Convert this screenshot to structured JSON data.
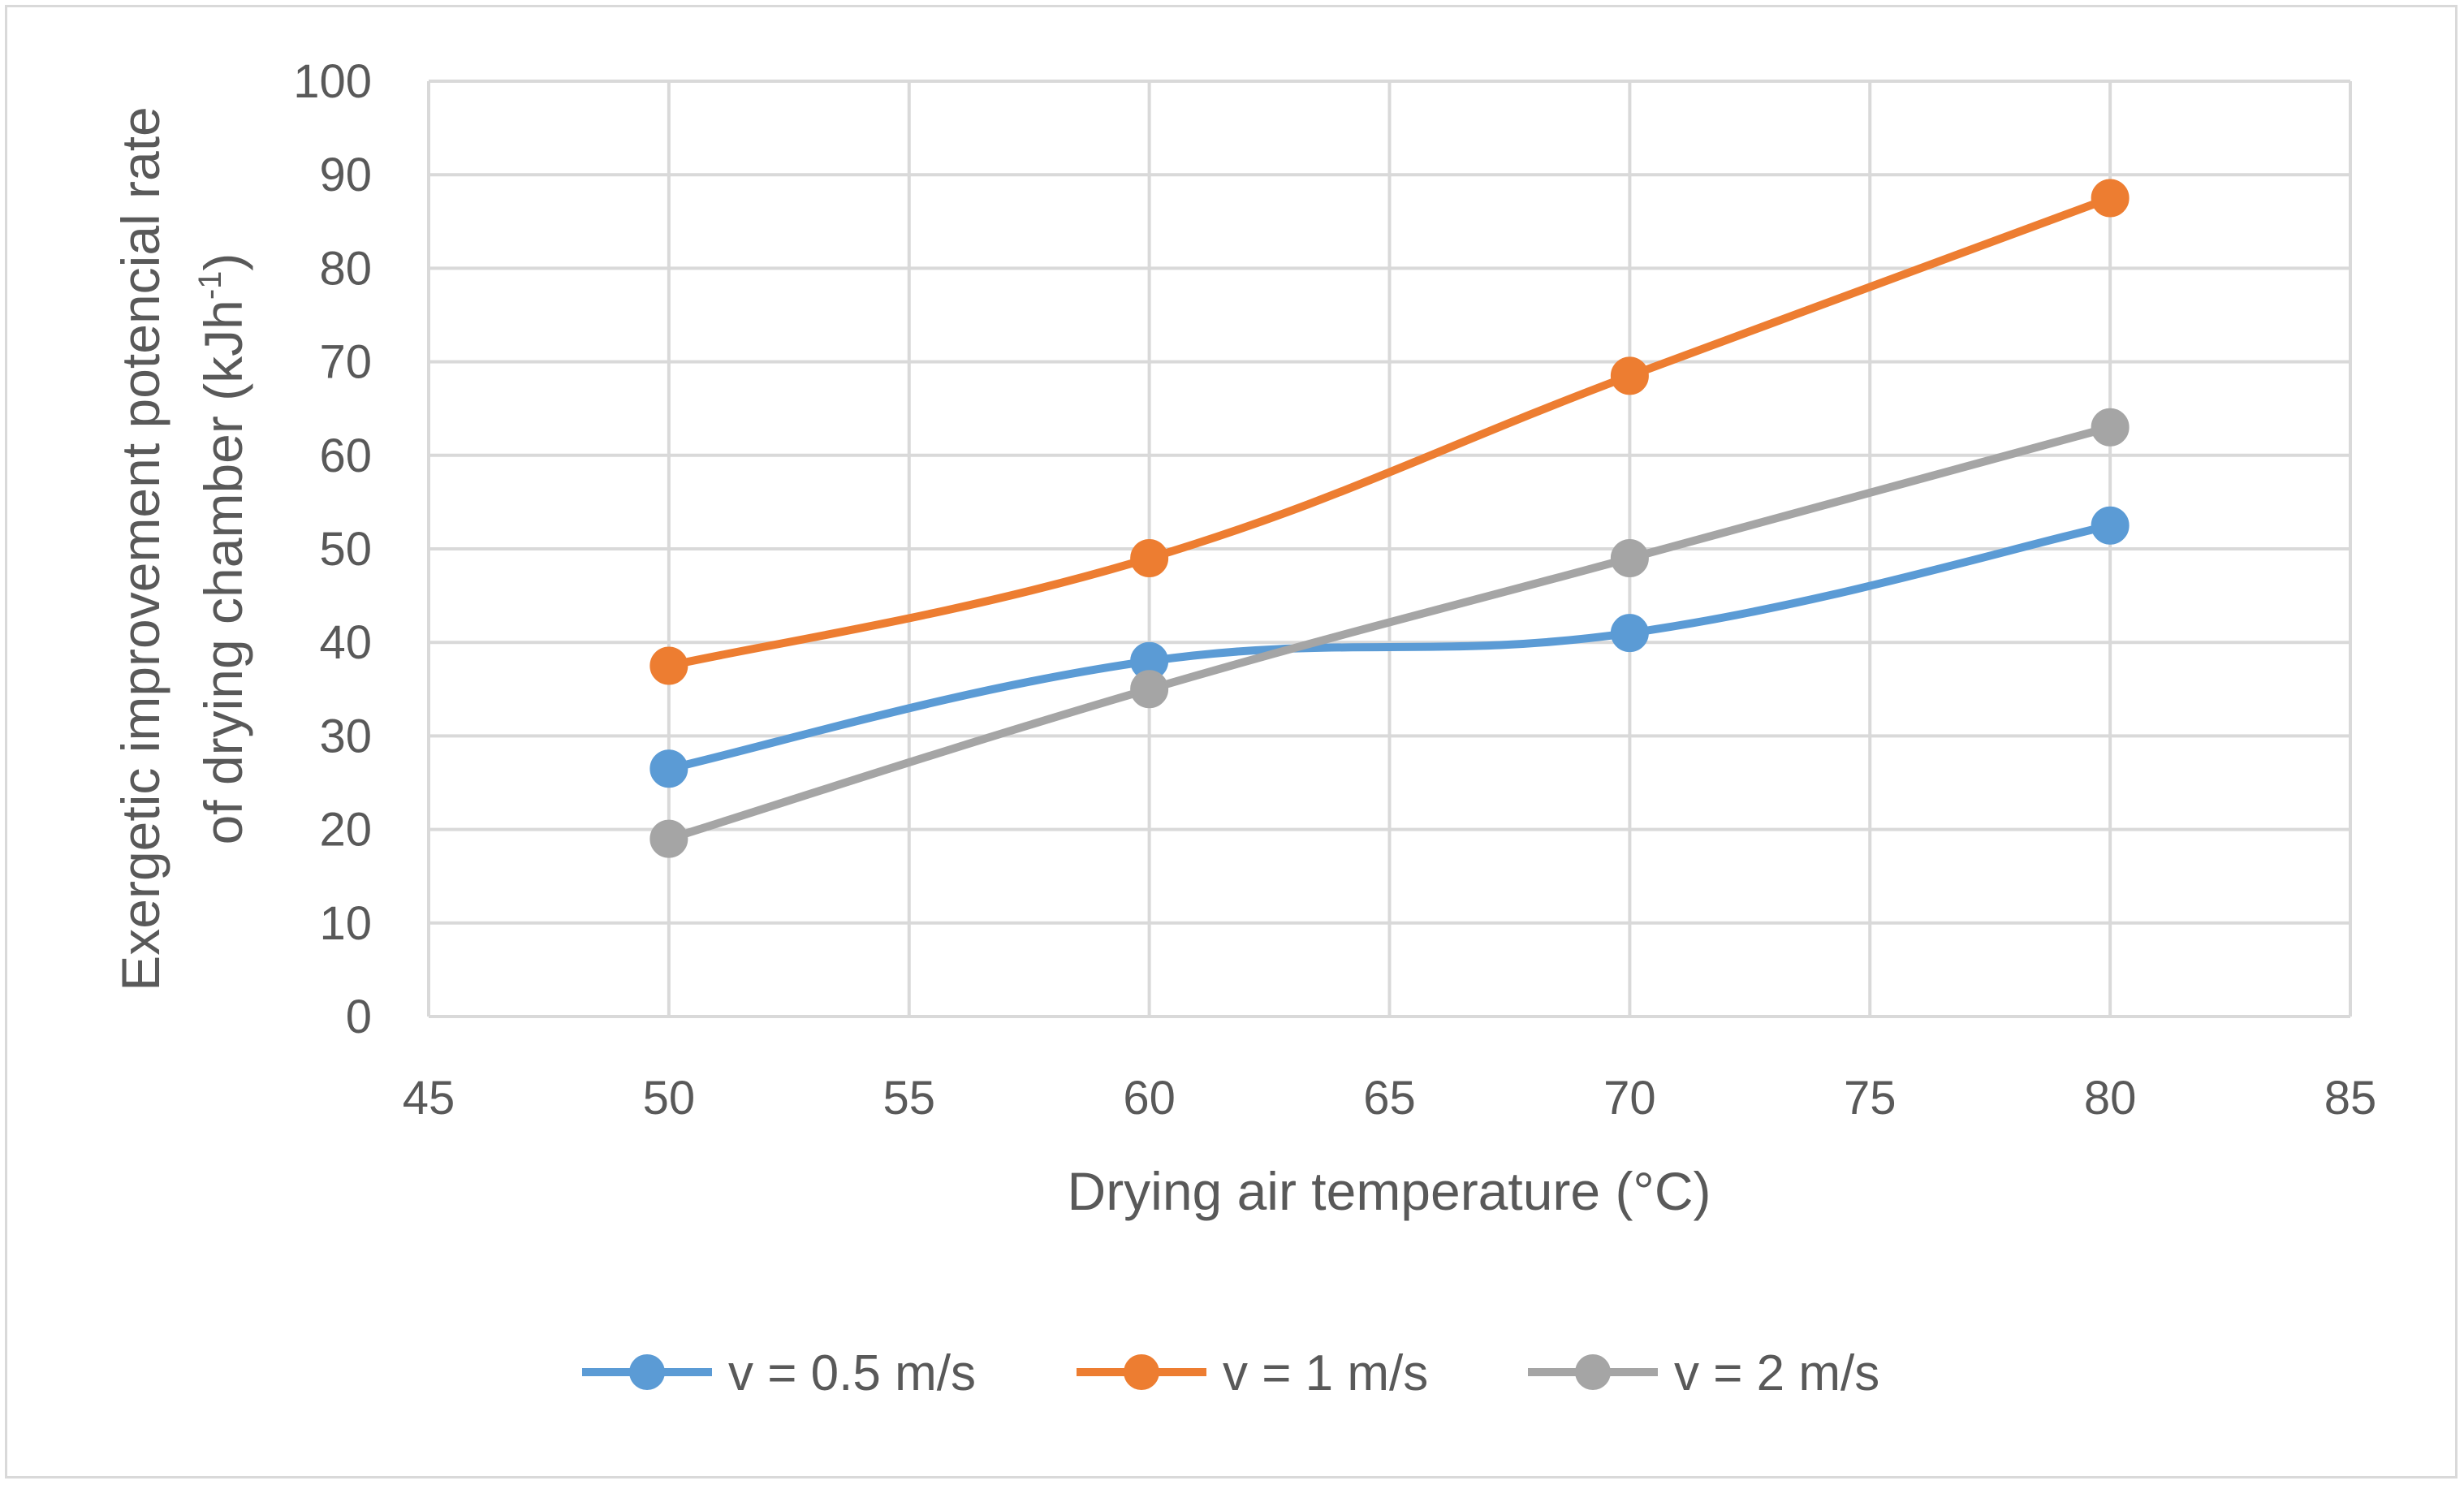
{
  "chart_data": {
    "type": "line",
    "title": "",
    "xlabel": "Drying air temperature (°C)",
    "ylabel_line1": "Exergetic improvement potencial rate",
    "ylabel_line2_main": "of drying chamber (kJh",
    "ylabel_line2_sup": "-1",
    "ylabel_line2_end": ")",
    "xlim": [
      45,
      85
    ],
    "ylim": [
      0,
      100
    ],
    "xticks": [
      45,
      50,
      55,
      60,
      65,
      70,
      75,
      80,
      85
    ],
    "yticks": [
      0,
      10,
      20,
      30,
      40,
      50,
      60,
      70,
      80,
      90,
      100
    ],
    "grid": true,
    "legend_position": "bottom",
    "x": [
      50,
      60,
      70,
      80
    ],
    "series": [
      {
        "name": "v = 0.5 m/s",
        "color": "#5b9bd5",
        "values": [
          26.5,
          38,
          41,
          52.5
        ]
      },
      {
        "name": "v = 1 m/s",
        "color": "#ed7d31",
        "values": [
          37.5,
          49,
          68.5,
          87.5
        ]
      },
      {
        "name": "v = 2 m/s",
        "color": "#a5a5a5",
        "values": [
          19,
          35,
          49,
          63
        ]
      }
    ]
  }
}
